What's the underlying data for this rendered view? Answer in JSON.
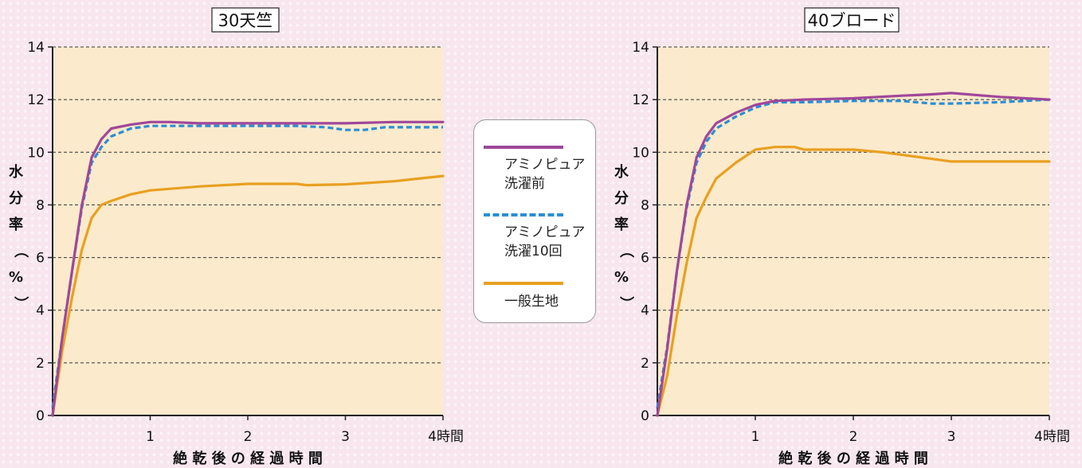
{
  "chart_data": [
    {
      "type": "line",
      "title": "30天竺",
      "ylabel": "水分率（%）",
      "xlabel": "絶 乾 後 の 経 過 時 間",
      "x_tick_labels": [
        "1",
        "2",
        "3",
        "4時間"
      ],
      "x_ticks": [
        1,
        2,
        3,
        4
      ],
      "y_ticks": [
        0,
        2,
        4,
        6,
        8,
        10,
        12,
        14
      ],
      "xlim": [
        0,
        4
      ],
      "ylim": [
        0,
        14
      ],
      "grid": "horizontal-dashed",
      "series": [
        {
          "name": "アミノピュア洗濯前",
          "color": "#a0479a",
          "style": "solid",
          "points": [
            [
              0,
              0
            ],
            [
              0.1,
              3.0
            ],
            [
              0.2,
              5.5
            ],
            [
              0.3,
              8.0
            ],
            [
              0.4,
              9.8
            ],
            [
              0.5,
              10.5
            ],
            [
              0.6,
              10.9
            ],
            [
              0.8,
              11.05
            ],
            [
              1.0,
              11.15
            ],
            [
              1.2,
              11.15
            ],
            [
              1.5,
              11.1
            ],
            [
              2.0,
              11.1
            ],
            [
              2.5,
              11.1
            ],
            [
              3.0,
              11.1
            ],
            [
              3.5,
              11.15
            ],
            [
              4.0,
              11.15
            ]
          ]
        },
        {
          "name": "アミノピュア洗濯10回",
          "color": "#2a8ed6",
          "style": "dashed",
          "points": [
            [
              0,
              0.3
            ],
            [
              0.1,
              3.0
            ],
            [
              0.2,
              5.5
            ],
            [
              0.3,
              7.9
            ],
            [
              0.4,
              9.6
            ],
            [
              0.5,
              10.2
            ],
            [
              0.6,
              10.6
            ],
            [
              0.8,
              10.9
            ],
            [
              1.0,
              11.0
            ],
            [
              1.5,
              11.0
            ],
            [
              2.0,
              11.0
            ],
            [
              2.5,
              11.0
            ],
            [
              2.8,
              10.95
            ],
            [
              3.0,
              10.85
            ],
            [
              3.2,
              10.85
            ],
            [
              3.4,
              10.95
            ],
            [
              3.7,
              10.95
            ],
            [
              4.0,
              10.95
            ]
          ]
        },
        {
          "name": "一般生地",
          "color": "#e8a020",
          "style": "solid",
          "points": [
            [
              0,
              0
            ],
            [
              0.1,
              2.5
            ],
            [
              0.2,
              4.5
            ],
            [
              0.3,
              6.3
            ],
            [
              0.4,
              7.5
            ],
            [
              0.5,
              8.0
            ],
            [
              0.6,
              8.15
            ],
            [
              0.8,
              8.4
            ],
            [
              1.0,
              8.55
            ],
            [
              1.5,
              8.7
            ],
            [
              2.0,
              8.8
            ],
            [
              2.5,
              8.8
            ],
            [
              2.6,
              8.75
            ],
            [
              3.0,
              8.78
            ],
            [
              3.5,
              8.9
            ],
            [
              4.0,
              9.1
            ]
          ]
        }
      ]
    },
    {
      "type": "line",
      "title": "40ブロード",
      "ylabel": "水分率（%）",
      "xlabel": "絶 乾 後 の 経 過 時 間",
      "x_tick_labels": [
        "1",
        "2",
        "3",
        "4時間"
      ],
      "x_ticks": [
        1,
        2,
        3,
        4
      ],
      "y_ticks": [
        0,
        2,
        4,
        6,
        8,
        10,
        12,
        14
      ],
      "xlim": [
        0,
        4
      ],
      "ylim": [
        0,
        14
      ],
      "grid": "horizontal-dashed",
      "series": [
        {
          "name": "アミノピュア洗濯前",
          "color": "#a0479a",
          "style": "solid",
          "points": [
            [
              0,
              0
            ],
            [
              0.1,
              2.5
            ],
            [
              0.2,
              5.5
            ],
            [
              0.3,
              8.0
            ],
            [
              0.4,
              9.8
            ],
            [
              0.5,
              10.6
            ],
            [
              0.6,
              11.1
            ],
            [
              0.8,
              11.5
            ],
            [
              1.0,
              11.8
            ],
            [
              1.2,
              11.95
            ],
            [
              1.5,
              12.0
            ],
            [
              2.0,
              12.05
            ],
            [
              2.5,
              12.15
            ],
            [
              2.8,
              12.2
            ],
            [
              3.0,
              12.25
            ],
            [
              3.5,
              12.1
            ],
            [
              4.0,
              12.0
            ]
          ]
        },
        {
          "name": "アミノピュア洗濯10回",
          "color": "#2a8ed6",
          "style": "dashed",
          "points": [
            [
              0,
              0.3
            ],
            [
              0.1,
              2.6
            ],
            [
              0.2,
              5.5
            ],
            [
              0.3,
              7.9
            ],
            [
              0.4,
              9.6
            ],
            [
              0.5,
              10.4
            ],
            [
              0.6,
              10.9
            ],
            [
              0.8,
              11.35
            ],
            [
              1.0,
              11.7
            ],
            [
              1.2,
              11.9
            ],
            [
              1.5,
              11.9
            ],
            [
              2.0,
              11.95
            ],
            [
              2.5,
              11.95
            ],
            [
              2.8,
              11.85
            ],
            [
              3.0,
              11.85
            ],
            [
              3.5,
              11.9
            ],
            [
              4.0,
              12.0
            ]
          ]
        },
        {
          "name": "一般生地",
          "color": "#e8a020",
          "style": "solid",
          "points": [
            [
              0,
              0
            ],
            [
              0.1,
              1.5
            ],
            [
              0.2,
              3.8
            ],
            [
              0.3,
              5.8
            ],
            [
              0.4,
              7.5
            ],
            [
              0.5,
              8.3
            ],
            [
              0.6,
              9.0
            ],
            [
              0.8,
              9.6
            ],
            [
              1.0,
              10.1
            ],
            [
              1.2,
              10.2
            ],
            [
              1.4,
              10.2
            ],
            [
              1.5,
              10.1
            ],
            [
              2.0,
              10.1
            ],
            [
              2.3,
              10.0
            ],
            [
              2.5,
              9.9
            ],
            [
              2.8,
              9.75
            ],
            [
              3.0,
              9.65
            ],
            [
              3.5,
              9.65
            ],
            [
              4.0,
              9.65
            ]
          ]
        }
      ]
    }
  ],
  "legend": {
    "items": [
      {
        "label_lines": [
          "アミノピュア",
          "洗濯前"
        ],
        "color": "#a0479a",
        "style": "solid"
      },
      {
        "label_lines": [
          "アミノピュア",
          "洗濯10回"
        ],
        "color": "#2a8ed6",
        "style": "dashed"
      },
      {
        "label_lines": [
          "一般生地"
        ],
        "color": "#e8a020",
        "style": "solid"
      }
    ]
  },
  "colors": {
    "plot_background": "#fbeacb",
    "axis": "#222222",
    "grid": "#333333"
  }
}
